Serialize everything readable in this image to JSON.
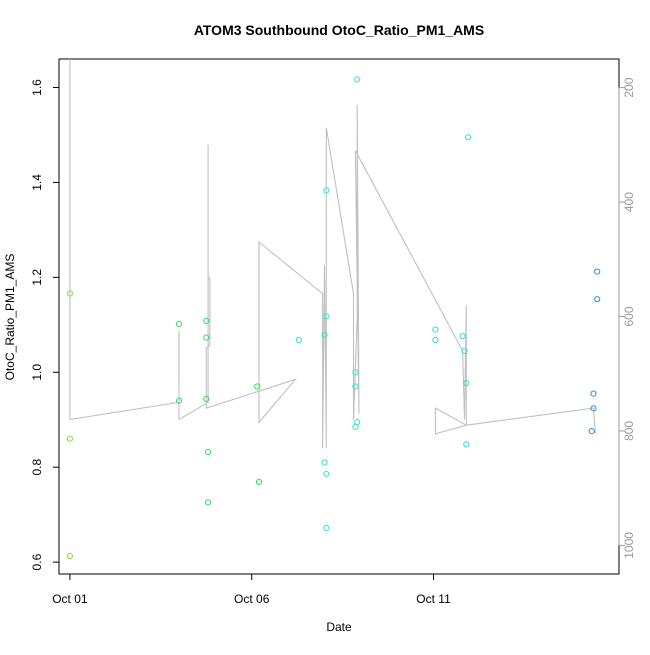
{
  "chart_data": {
    "type": "scatter",
    "title": "ATOM3 Southbound OtoC_Ratio_PM1_AMS",
    "xlabel": "Date",
    "ylabel": "OtoC_Ratio_PM1_AMS",
    "x_ticks": [
      {
        "day": 1,
        "label": "Oct 01"
      },
      {
        "day": 6,
        "label": "Oct 06"
      },
      {
        "day": 11,
        "label": "Oct 11"
      }
    ],
    "y_ticks": [
      0.6,
      0.8,
      1.0,
      1.2,
      1.4,
      1.6
    ],
    "y2_ticks": [
      200,
      400,
      600,
      800,
      1000
    ],
    "x_range": [
      0.7,
      16.1
    ],
    "ylim": [
      0.575,
      1.66
    ],
    "y2lim": [
      1050,
      150
    ],
    "y2_reversed": true,
    "grid": false,
    "colors": {
      "track": "#c0c0c0",
      "axis": "#000000",
      "secondary_axis": "#999999",
      "point_scale": [
        "#88e030",
        "#30e060",
        "#30e8c8",
        "#30d8e8",
        "#2890e0"
      ]
    },
    "points": [
      {
        "day": 1.0,
        "y": 1.166
      },
      {
        "day": 1.0,
        "y": 0.86
      },
      {
        "day": 1.0,
        "y": 0.613
      },
      {
        "day": 4.0,
        "y": 1.102
      },
      {
        "day": 4.0,
        "y": 0.94
      },
      {
        "day": 4.75,
        "y": 1.108
      },
      {
        "day": 4.75,
        "y": 1.073
      },
      {
        "day": 4.75,
        "y": 0.944
      },
      {
        "day": 4.8,
        "y": 0.832
      },
      {
        "day": 4.8,
        "y": 0.726
      },
      {
        "day": 6.15,
        "y": 0.97
      },
      {
        "day": 6.2,
        "y": 0.769
      },
      {
        "day": 7.3,
        "y": 1.068
      },
      {
        "day": 8.05,
        "y": 1.118
      },
      {
        "day": 8.0,
        "y": 1.079
      },
      {
        "day": 8.05,
        "y": 1.383
      },
      {
        "day": 8.0,
        "y": 0.81
      },
      {
        "day": 8.05,
        "y": 0.786
      },
      {
        "day": 8.05,
        "y": 0.672
      },
      {
        "day": 8.85,
        "y": 1.0
      },
      {
        "day": 8.85,
        "y": 0.97
      },
      {
        "day": 8.9,
        "y": 1.617
      },
      {
        "day": 8.9,
        "y": 0.895
      },
      {
        "day": 8.85,
        "y": 0.885
      },
      {
        "day": 11.05,
        "y": 1.09
      },
      {
        "day": 11.05,
        "y": 1.068
      },
      {
        "day": 11.8,
        "y": 1.076
      },
      {
        "day": 11.85,
        "y": 1.045
      },
      {
        "day": 11.95,
        "y": 1.495
      },
      {
        "day": 11.9,
        "y": 0.977
      },
      {
        "day": 11.9,
        "y": 0.848
      },
      {
        "day": 15.5,
        "y": 1.212
      },
      {
        "day": 15.5,
        "y": 1.154
      },
      {
        "day": 15.4,
        "y": 0.955
      },
      {
        "day": 15.4,
        "y": 0.924
      },
      {
        "day": 15.35,
        "y": 0.876
      }
    ],
    "track_y2": [
      {
        "day": 1.0,
        "y2": 150
      },
      {
        "day": 1.0,
        "y2": 780
      },
      {
        "day": 4.0,
        "y2": 750
      },
      {
        "day": 4.0,
        "y2": 625
      },
      {
        "day": 4.0,
        "y2": 780
      },
      {
        "day": 4.8,
        "y2": 750
      },
      {
        "day": 4.8,
        "y2": 300
      },
      {
        "day": 4.8,
        "y2": 530
      },
      {
        "day": 4.85,
        "y2": 535
      },
      {
        "day": 4.85,
        "y2": 650
      },
      {
        "day": 4.75,
        "y2": 655
      },
      {
        "day": 4.75,
        "y2": 760
      },
      {
        "day": 7.2,
        "y2": 710
      },
      {
        "day": 6.2,
        "y2": 785
      },
      {
        "day": 6.2,
        "y2": 470
      },
      {
        "day": 7.95,
        "y2": 560
      },
      {
        "day": 7.95,
        "y2": 830
      },
      {
        "day": 8.0,
        "y2": 510
      },
      {
        "day": 8.05,
        "y2": 830
      },
      {
        "day": 8.05,
        "y2": 270
      },
      {
        "day": 8.8,
        "y2": 560
      },
      {
        "day": 8.8,
        "y2": 780
      },
      {
        "day": 8.9,
        "y2": 600
      },
      {
        "day": 8.9,
        "y2": 230
      },
      {
        "day": 8.95,
        "y2": 770
      },
      {
        "day": 8.85,
        "y2": 310
      },
      {
        "day": 11.8,
        "y2": 660
      },
      {
        "day": 11.85,
        "y2": 780
      },
      {
        "day": 11.9,
        "y2": 580
      },
      {
        "day": 11.9,
        "y2": 790
      },
      {
        "day": 11.05,
        "y2": 760
      },
      {
        "day": 11.05,
        "y2": 805
      },
      {
        "day": 11.9,
        "y2": 790
      },
      {
        "day": 15.4,
        "y2": 760
      },
      {
        "day": 15.45,
        "y2": 805
      }
    ]
  }
}
